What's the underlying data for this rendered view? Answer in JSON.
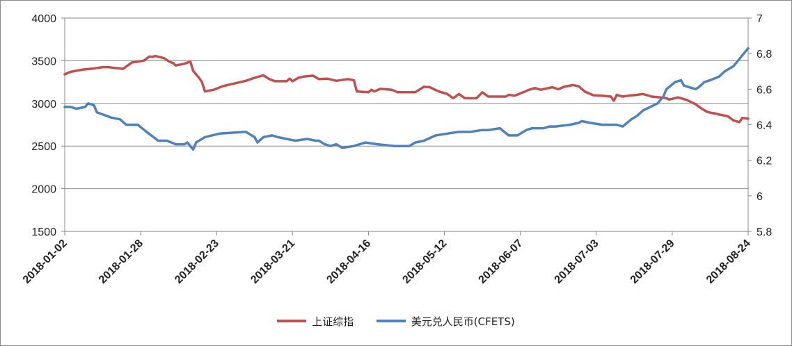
{
  "chart_data": {
    "type": "line",
    "title": "",
    "xlabel": "",
    "ylabel": "",
    "y2label": "",
    "x_start": "2018-01-02",
    "x_end": "2018-08-24",
    "xticks": [
      "2018-01-02",
      "2018-01-28",
      "2018-02-23",
      "2018-03-21",
      "2018-04-16",
      "2018-05-12",
      "2018-06-07",
      "2018-07-03",
      "2018-07-29",
      "2018-08-24"
    ],
    "ylim": [
      1500,
      4000
    ],
    "yticks": [
      1500,
      2000,
      2500,
      3000,
      3500,
      4000
    ],
    "y2lim": [
      5.8,
      7
    ],
    "y2ticks": [
      "5.8",
      "6",
      "6.2",
      "6.4",
      "6.6",
      "6.8",
      "7"
    ],
    "grid": true,
    "legend_position": "bottom",
    "series": [
      {
        "name": "上证综指",
        "axis": "left",
        "color": "#c0504d",
        "points": [
          [
            "2018-01-02",
            3340
          ],
          [
            "2018-01-04",
            3370
          ],
          [
            "2018-01-08",
            3395
          ],
          [
            "2018-01-12",
            3410
          ],
          [
            "2018-01-15",
            3425
          ],
          [
            "2018-01-17",
            3425
          ],
          [
            "2018-01-19",
            3415
          ],
          [
            "2018-01-22",
            3405
          ],
          [
            "2018-01-23",
            3430
          ],
          [
            "2018-01-25",
            3480
          ],
          [
            "2018-01-29",
            3500
          ],
          [
            "2018-01-31",
            3550
          ],
          [
            "2018-02-01",
            3545
          ],
          [
            "2018-02-02",
            3555
          ],
          [
            "2018-02-05",
            3530
          ],
          [
            "2018-02-07",
            3485
          ],
          [
            "2018-02-08",
            3475
          ],
          [
            "2018-02-09",
            3445
          ],
          [
            "2018-02-12",
            3465
          ],
          [
            "2018-02-14",
            3490
          ],
          [
            "2018-02-15",
            3380
          ],
          [
            "2018-02-17",
            3300
          ],
          [
            "2018-02-18",
            3250
          ],
          [
            "2018-02-19",
            3140
          ],
          [
            "2018-02-22",
            3160
          ],
          [
            "2018-02-25",
            3200
          ],
          [
            "2018-02-28",
            3225
          ],
          [
            "2018-03-05",
            3265
          ],
          [
            "2018-03-08",
            3300
          ],
          [
            "2018-03-11",
            3330
          ],
          [
            "2018-03-13",
            3285
          ],
          [
            "2018-03-15",
            3260
          ],
          [
            "2018-03-19",
            3260
          ],
          [
            "2018-03-20",
            3290
          ],
          [
            "2018-03-21",
            3260
          ],
          [
            "2018-03-23",
            3300
          ],
          [
            "2018-03-25",
            3315
          ],
          [
            "2018-03-28",
            3325
          ],
          [
            "2018-03-30",
            3285
          ],
          [
            "2018-04-02",
            3290
          ],
          [
            "2018-04-05",
            3265
          ],
          [
            "2018-04-09",
            3285
          ],
          [
            "2018-04-11",
            3270
          ],
          [
            "2018-04-12",
            3140
          ],
          [
            "2018-04-16",
            3130
          ],
          [
            "2018-04-17",
            3160
          ],
          [
            "2018-04-18",
            3140
          ],
          [
            "2018-04-20",
            3170
          ],
          [
            "2018-04-24",
            3160
          ],
          [
            "2018-04-26",
            3130
          ],
          [
            "2018-05-02",
            3130
          ],
          [
            "2018-05-05",
            3195
          ],
          [
            "2018-05-07",
            3190
          ],
          [
            "2018-05-10",
            3140
          ],
          [
            "2018-05-13",
            3110
          ],
          [
            "2018-05-15",
            3060
          ],
          [
            "2018-05-17",
            3110
          ],
          [
            "2018-05-19",
            3060
          ],
          [
            "2018-05-23",
            3060
          ],
          [
            "2018-05-25",
            3130
          ],
          [
            "2018-05-27",
            3080
          ],
          [
            "2018-06-02",
            3080
          ],
          [
            "2018-06-03",
            3100
          ],
          [
            "2018-06-05",
            3090
          ],
          [
            "2018-06-08",
            3130
          ],
          [
            "2018-06-10",
            3160
          ],
          [
            "2018-06-12",
            3180
          ],
          [
            "2018-06-14",
            3160
          ],
          [
            "2018-06-16",
            3175
          ],
          [
            "2018-06-18",
            3190
          ],
          [
            "2018-06-20",
            3165
          ],
          [
            "2018-06-22",
            3195
          ],
          [
            "2018-06-25",
            3215
          ],
          [
            "2018-06-27",
            3200
          ],
          [
            "2018-06-29",
            3140
          ],
          [
            "2018-07-02",
            3095
          ],
          [
            "2018-07-05",
            3090
          ],
          [
            "2018-07-08",
            3080
          ],
          [
            "2018-07-09",
            3030
          ],
          [
            "2018-07-10",
            3100
          ],
          [
            "2018-07-12",
            3080
          ],
          [
            "2018-07-14",
            3090
          ],
          [
            "2018-07-17",
            3100
          ],
          [
            "2018-07-19",
            3110
          ],
          [
            "2018-07-22",
            3080
          ],
          [
            "2018-07-25",
            3070
          ],
          [
            "2018-07-27",
            3060
          ],
          [
            "2018-07-28",
            3045
          ],
          [
            "2018-07-31",
            3070
          ],
          [
            "2018-08-03",
            3040
          ],
          [
            "2018-08-06",
            2990
          ],
          [
            "2018-08-08",
            2940
          ],
          [
            "2018-08-10",
            2900
          ],
          [
            "2018-08-12",
            2885
          ],
          [
            "2018-08-13",
            2880
          ],
          [
            "2018-08-14",
            2870
          ],
          [
            "2018-08-17",
            2850
          ],
          [
            "2018-08-19",
            2800
          ],
          [
            "2018-08-21",
            2780
          ],
          [
            "2018-08-22",
            2830
          ],
          [
            "2018-08-24",
            2820
          ]
        ]
      },
      {
        "name": "美元兑人民币(CFETS)",
        "axis": "right",
        "color": "#4f81bd",
        "points": [
          [
            "2018-01-02",
            6.5
          ],
          [
            "2018-01-04",
            6.5
          ],
          [
            "2018-01-06",
            6.49
          ],
          [
            "2018-01-09",
            6.5
          ],
          [
            "2018-01-10",
            6.52
          ],
          [
            "2018-01-12",
            6.51
          ],
          [
            "2018-01-13",
            6.47
          ],
          [
            "2018-01-18",
            6.44
          ],
          [
            "2018-01-21",
            6.43
          ],
          [
            "2018-01-23",
            6.4
          ],
          [
            "2018-01-27",
            6.4
          ],
          [
            "2018-01-30",
            6.36
          ],
          [
            "2018-02-03",
            6.31
          ],
          [
            "2018-02-06",
            6.31
          ],
          [
            "2018-02-09",
            6.29
          ],
          [
            "2018-02-12",
            6.29
          ],
          [
            "2018-02-13",
            6.3
          ],
          [
            "2018-02-15",
            6.26
          ],
          [
            "2018-02-16",
            6.3
          ],
          [
            "2018-02-19",
            6.33
          ],
          [
            "2018-02-24",
            6.35
          ],
          [
            "2018-03-05",
            6.36
          ],
          [
            "2018-03-08",
            6.33
          ],
          [
            "2018-03-09",
            6.3
          ],
          [
            "2018-03-11",
            6.33
          ],
          [
            "2018-03-14",
            6.34
          ],
          [
            "2018-03-16",
            6.33
          ],
          [
            "2018-03-19",
            6.32
          ],
          [
            "2018-03-22",
            6.31
          ],
          [
            "2018-03-26",
            6.32
          ],
          [
            "2018-03-29",
            6.31
          ],
          [
            "2018-03-30",
            6.31
          ],
          [
            "2018-04-01",
            6.29
          ],
          [
            "2018-04-03",
            6.28
          ],
          [
            "2018-04-05",
            6.29
          ],
          [
            "2018-04-07",
            6.27
          ],
          [
            "2018-04-11",
            6.28
          ],
          [
            "2018-04-13",
            6.29
          ],
          [
            "2018-04-15",
            6.3
          ],
          [
            "2018-04-19",
            6.29
          ],
          [
            "2018-04-25",
            6.28
          ],
          [
            "2018-04-30",
            6.28
          ],
          [
            "2018-05-02",
            6.3
          ],
          [
            "2018-05-05",
            6.31
          ],
          [
            "2018-05-09",
            6.34
          ],
          [
            "2018-05-13",
            6.35
          ],
          [
            "2018-05-17",
            6.36
          ],
          [
            "2018-05-21",
            6.36
          ],
          [
            "2018-05-25",
            6.37
          ],
          [
            "2018-05-27",
            6.37
          ],
          [
            "2018-05-31",
            6.38
          ],
          [
            "2018-06-03",
            6.34
          ],
          [
            "2018-06-06",
            6.34
          ],
          [
            "2018-06-09",
            6.37
          ],
          [
            "2018-06-11",
            6.38
          ],
          [
            "2018-06-13",
            6.38
          ],
          [
            "2018-06-15",
            6.38
          ],
          [
            "2018-06-17",
            6.39
          ],
          [
            "2018-06-19",
            6.39
          ],
          [
            "2018-06-24",
            6.4
          ],
          [
            "2018-06-27",
            6.41
          ],
          [
            "2018-06-28",
            6.42
          ],
          [
            "2018-07-01",
            6.41
          ],
          [
            "2018-07-05",
            6.4
          ],
          [
            "2018-07-08",
            6.4
          ],
          [
            "2018-07-10",
            6.4
          ],
          [
            "2018-07-12",
            6.39
          ],
          [
            "2018-07-15",
            6.43
          ],
          [
            "2018-07-17",
            6.45
          ],
          [
            "2018-07-19",
            6.48
          ],
          [
            "2018-07-24",
            6.52
          ],
          [
            "2018-07-26",
            6.56
          ],
          [
            "2018-07-27",
            6.6
          ],
          [
            "2018-07-30",
            6.64
          ],
          [
            "2018-08-01",
            6.65
          ],
          [
            "2018-08-02",
            6.62
          ],
          [
            "2018-08-06",
            6.6
          ],
          [
            "2018-08-07",
            6.61
          ],
          [
            "2018-08-09",
            6.64
          ],
          [
            "2018-08-11",
            6.65
          ],
          [
            "2018-08-14",
            6.67
          ],
          [
            "2018-08-16",
            6.7
          ],
          [
            "2018-08-19",
            6.73
          ],
          [
            "2018-08-21",
            6.77
          ],
          [
            "2018-08-22",
            6.79
          ],
          [
            "2018-08-24",
            6.83
          ]
        ]
      }
    ]
  }
}
